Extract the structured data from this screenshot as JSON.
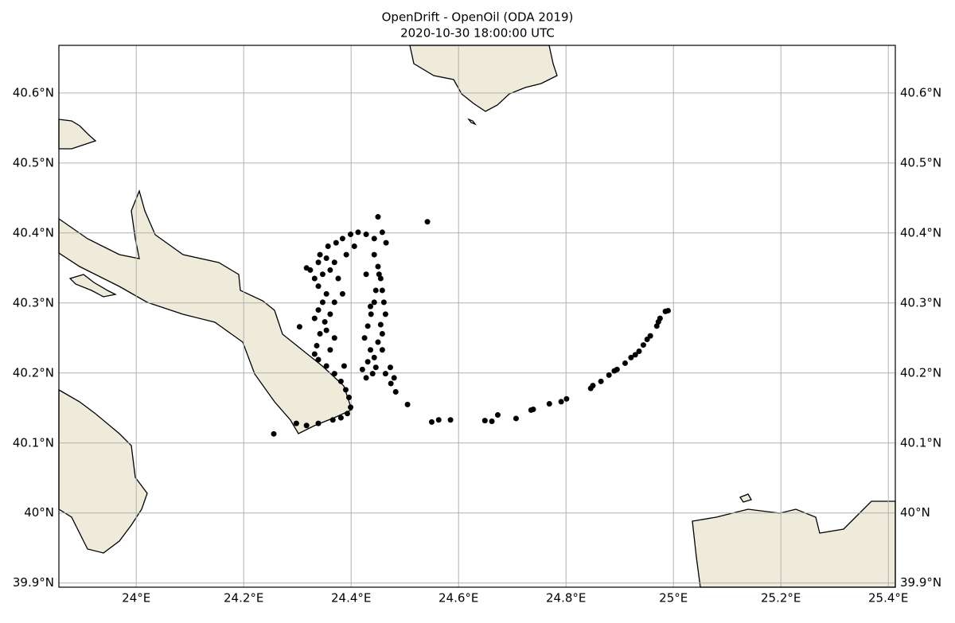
{
  "chart_data": {
    "type": "scatter",
    "title": "OpenDrift - OpenOil (ODA 2019)",
    "subtitle": "2020-10-30 18:00:00 UTC",
    "xlim": [
      23.856,
      25.413
    ],
    "ylim": [
      39.894,
      40.668
    ],
    "xticks": [
      {
        "value": 24,
        "label": "24°E"
      },
      {
        "value": 24.2,
        "label": "24.2°E"
      },
      {
        "value": 24.4,
        "label": "24.4°E"
      },
      {
        "value": 24.6,
        "label": "24.6°E"
      },
      {
        "value": 24.8,
        "label": "24.8°E"
      },
      {
        "value": 25,
        "label": "25°E"
      },
      {
        "value": 25.2,
        "label": "25.2°E"
      },
      {
        "value": 25.4,
        "label": "25.4°E"
      }
    ],
    "yticks": [
      {
        "value": 39.9,
        "label": "39.9°N"
      },
      {
        "value": 40,
        "label": "40°N"
      },
      {
        "value": 40.1,
        "label": "40.1°N"
      },
      {
        "value": 40.2,
        "label": "40.2°N"
      },
      {
        "value": 40.3,
        "label": "40.3°N"
      },
      {
        "value": 40.4,
        "label": "40.4°N"
      },
      {
        "value": 40.5,
        "label": "40.5°N"
      },
      {
        "value": 40.6,
        "label": "40.6°N"
      }
    ],
    "grid": true,
    "color": "#000000",
    "x": [
      24.99,
      24.985,
      24.975,
      24.972,
      24.969,
      24.957,
      24.951,
      24.944,
      24.936,
      24.929,
      24.921,
      24.91,
      24.895,
      24.89,
      24.88,
      24.865,
      24.85,
      24.846,
      24.801,
      24.791,
      24.769,
      24.739,
      24.735,
      24.707,
      24.673,
      24.662,
      24.649,
      24.585,
      24.563,
      24.55,
      24.505,
      24.483,
      24.474,
      24.256,
      24.542,
      24.45,
      24.304,
      24.317,
      24.332,
      24.339,
      24.347,
      24.354,
      24.339,
      24.332,
      24.347,
      24.361,
      24.369,
      24.354,
      24.339,
      24.324,
      24.342,
      24.357,
      24.372,
      24.384,
      24.399,
      24.413,
      24.428,
      24.443,
      24.458,
      24.465,
      24.406,
      24.391,
      24.376,
      24.384,
      24.369,
      24.361,
      24.351,
      24.342,
      24.336,
      24.332,
      24.339,
      24.354,
      24.369,
      24.381,
      24.39,
      24.396,
      24.399,
      24.393,
      24.381,
      24.366,
      24.339,
      24.317,
      24.298,
      24.354,
      24.369,
      24.361,
      24.387,
      24.443,
      24.45,
      24.455,
      24.458,
      24.461,
      24.464,
      24.455,
      24.458,
      24.45,
      24.458,
      24.443,
      24.446,
      24.44,
      24.428,
      24.421,
      24.431,
      24.436,
      24.425,
      24.431,
      24.437,
      24.443,
      24.446,
      24.452,
      24.473,
      24.464,
      24.48,
      24.436,
      24.428
    ],
    "y": [
      40.289,
      40.288,
      40.278,
      40.273,
      40.267,
      40.253,
      40.248,
      40.24,
      40.231,
      40.226,
      40.222,
      40.214,
      40.205,
      40.203,
      40.197,
      40.188,
      40.182,
      40.178,
      40.163,
      40.159,
      40.156,
      40.148,
      40.147,
      40.135,
      40.14,
      40.131,
      40.132,
      40.133,
      40.133,
      40.13,
      40.155,
      40.173,
      40.185,
      40.113,
      40.416,
      40.423,
      40.266,
      40.35,
      40.278,
      40.29,
      40.301,
      40.313,
      40.324,
      40.335,
      40.341,
      40.347,
      40.358,
      40.364,
      40.358,
      40.347,
      40.369,
      40.381,
      40.386,
      40.392,
      40.398,
      40.401,
      40.398,
      40.392,
      40.401,
      40.386,
      40.381,
      40.369,
      40.335,
      40.313,
      40.301,
      40.284,
      40.273,
      40.256,
      40.239,
      40.227,
      40.219,
      40.21,
      40.199,
      40.188,
      40.176,
      40.165,
      40.151,
      40.142,
      40.136,
      40.133,
      40.128,
      40.125,
      40.128,
      40.261,
      40.25,
      40.233,
      40.21,
      40.369,
      40.352,
      40.335,
      40.318,
      40.301,
      40.284,
      40.269,
      40.256,
      40.244,
      40.233,
      40.222,
      40.208,
      40.199,
      40.193,
      40.205,
      40.216,
      40.233,
      40.25,
      40.267,
      40.284,
      40.301,
      40.318,
      40.341,
      40.208,
      40.199,
      40.193,
      40.295,
      40.341
    ]
  }
}
